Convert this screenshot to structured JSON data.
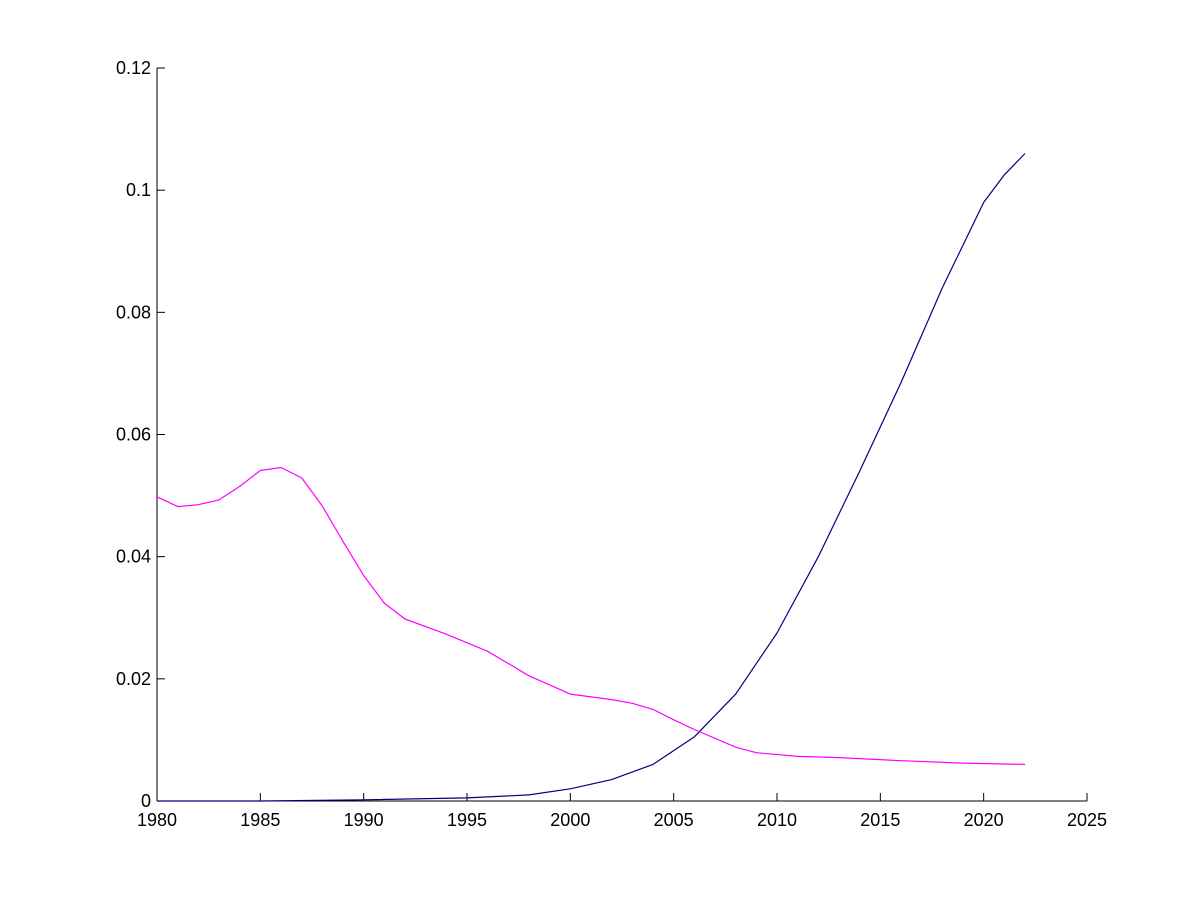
{
  "chart_data": {
    "type": "line",
    "title": "",
    "xlabel": "",
    "ylabel": "",
    "xlim": [
      1980,
      2025
    ],
    "ylim": [
      0,
      0.12
    ],
    "grid": false,
    "legend": "none",
    "x_ticks": [
      "1980",
      "1985",
      "1990",
      "1995",
      "2000",
      "2005",
      "2010",
      "2015",
      "2020",
      "2025"
    ],
    "y_ticks": [
      "0",
      "0.02",
      "0.04",
      "0.06",
      "0.08",
      "0.1",
      "0.12"
    ],
    "series": [
      {
        "color": "#00007f",
        "points": [
          [
            1980,
            0.0
          ],
          [
            1985,
            0.0
          ],
          [
            1990,
            0.0002
          ],
          [
            1995,
            0.0005
          ],
          [
            1998,
            0.001
          ],
          [
            2000,
            0.002
          ],
          [
            2002,
            0.0035
          ],
          [
            2004,
            0.006
          ],
          [
            2006,
            0.0105
          ],
          [
            2008,
            0.0175
          ],
          [
            2010,
            0.0275
          ],
          [
            2012,
            0.04
          ],
          [
            2014,
            0.054
          ],
          [
            2016,
            0.0685
          ],
          [
            2018,
            0.084
          ],
          [
            2020,
            0.098
          ],
          [
            2021,
            0.1025
          ],
          [
            2022,
            0.106
          ]
        ]
      },
      {
        "color": "#ff00ff",
        "points": [
          [
            1980,
            0.0498
          ],
          [
            1981,
            0.0482
          ],
          [
            1982,
            0.0485
          ],
          [
            1983,
            0.0493
          ],
          [
            1984,
            0.0515
          ],
          [
            1985,
            0.0541
          ],
          [
            1986,
            0.0546
          ],
          [
            1987,
            0.0529
          ],
          [
            1988,
            0.0483
          ],
          [
            1989,
            0.0425
          ],
          [
            1990,
            0.0369
          ],
          [
            1991,
            0.0324
          ],
          [
            1992,
            0.0298
          ],
          [
            1994,
            0.0273
          ],
          [
            1996,
            0.0245
          ],
          [
            1998,
            0.0205
          ],
          [
            2000,
            0.0175
          ],
          [
            2002,
            0.0166
          ],
          [
            2003,
            0.016
          ],
          [
            2004,
            0.015
          ],
          [
            2005,
            0.0133
          ],
          [
            2006,
            0.0117
          ],
          [
            2008,
            0.0088
          ],
          [
            2009,
            0.0079
          ],
          [
            2011,
            0.0073
          ],
          [
            2013,
            0.0071
          ],
          [
            2016,
            0.0066
          ],
          [
            2019,
            0.0062
          ],
          [
            2022,
            0.006
          ]
        ]
      }
    ]
  }
}
